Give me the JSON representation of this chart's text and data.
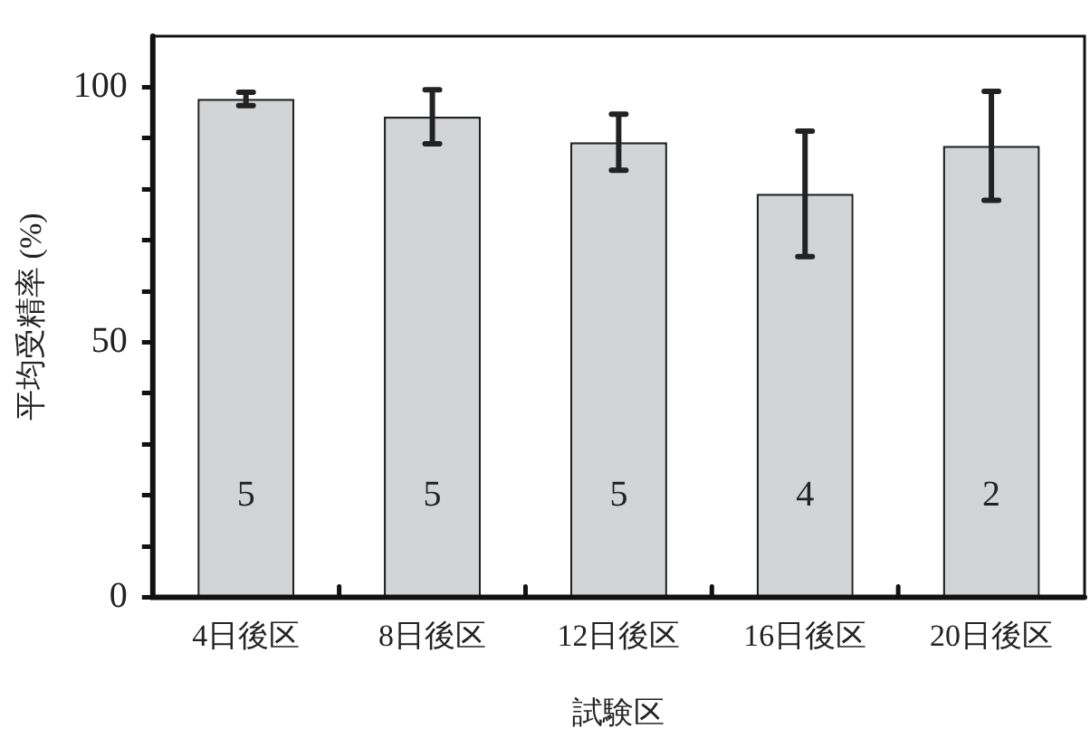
{
  "chart_data": {
    "type": "bar",
    "xlabel": "試験区",
    "ylabel": "平均受精率 (%)",
    "categories": [
      "4日後区",
      "8日後区",
      "12日後区",
      "16日後区",
      "20日後区"
    ],
    "values": [
      97.7,
      94.2,
      89.2,
      79.1,
      88.5
    ],
    "errors": [
      1.3,
      5.3,
      5.5,
      12.3,
      10.7
    ],
    "color": "#d3d4d6",
    "ylim": [
      0,
      110
    ],
    "yticks": [
      0,
      {
        "value": 10,
        "label": null
      },
      {
        "value": 20,
        "label": null
      },
      {
        "value": 30,
        "label": null
      },
      {
        "value": 40,
        "label": null
      },
      50,
      {
        "value": 60,
        "label": null
      },
      {
        "value": 70,
        "label": null
      },
      {
        "value": 80,
        "label": null
      },
      {
        "value": 90,
        "label": null
      },
      100
    ],
    "annotations": [
      "5",
      "5",
      "5",
      "4",
      "2"
    ],
    "grid": false,
    "legend": false
  }
}
